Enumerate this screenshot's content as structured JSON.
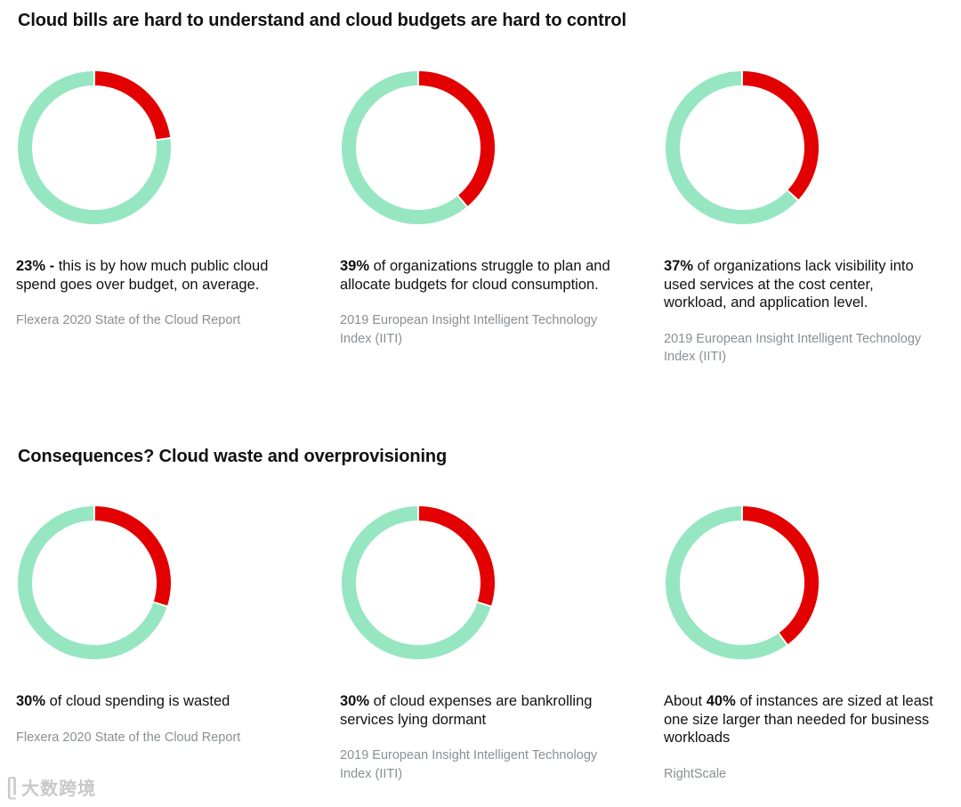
{
  "sections": [
    {
      "title": "Cloud bills are hard to understand and cloud budgets are hard to control"
    },
    {
      "title": "Consequences? Cloud waste and overprovisioning"
    }
  ],
  "colors": {
    "highlight": "#e30000",
    "remainder": "#96e6c2"
  },
  "chart_data": [
    {
      "type": "pie",
      "variant": "donut",
      "labels": [
        "highlighted",
        "remainder"
      ],
      "values": [
        23,
        77
      ],
      "stat": {
        "prefix": "",
        "value": "23% -",
        "text": " this is by how much public cloud spend goes over budget, on average."
      },
      "source": "Flexera 2020 State of the Cloud Report"
    },
    {
      "type": "pie",
      "variant": "donut",
      "labels": [
        "highlighted",
        "remainder"
      ],
      "values": [
        39,
        61
      ],
      "stat": {
        "prefix": "",
        "value": "39%",
        "text": " of organizations struggle to plan and allocate budgets for cloud consumption."
      },
      "source": "2019 European Insight Intelligent Technology Index (IITI)"
    },
    {
      "type": "pie",
      "variant": "donut",
      "labels": [
        "highlighted",
        "remainder"
      ],
      "values": [
        37,
        63
      ],
      "stat": {
        "prefix": "",
        "value": "37%",
        "text": " of organizations lack visibility into used services at the cost center, workload, and application level."
      },
      "source": "2019 European Insight Intelligent Technology Index (IITI)"
    },
    {
      "type": "pie",
      "variant": "donut",
      "labels": [
        "highlighted",
        "remainder"
      ],
      "values": [
        30,
        70
      ],
      "stat": {
        "prefix": "",
        "value": "30%",
        "text": " of cloud spending is wasted"
      },
      "source": "Flexera 2020 State of the Cloud Report"
    },
    {
      "type": "pie",
      "variant": "donut",
      "labels": [
        "highlighted",
        "remainder"
      ],
      "values": [
        30,
        70
      ],
      "stat": {
        "prefix": "",
        "value": "30%",
        "text": " of cloud expenses are bankrolling services lying dormant"
      },
      "source": "2019 European Insight Intelligent Technology Index (IITI)"
    },
    {
      "type": "pie",
      "variant": "donut",
      "labels": [
        "highlighted",
        "remainder"
      ],
      "values": [
        40,
        60
      ],
      "stat": {
        "prefix": "About ",
        "value": "40%",
        "text": " of instances are sized at least one size larger than needed for business workloads"
      },
      "source": "RightScale"
    }
  ],
  "watermark": {
    "icon": "watermark-logo-icon",
    "text": "大数跨境"
  }
}
